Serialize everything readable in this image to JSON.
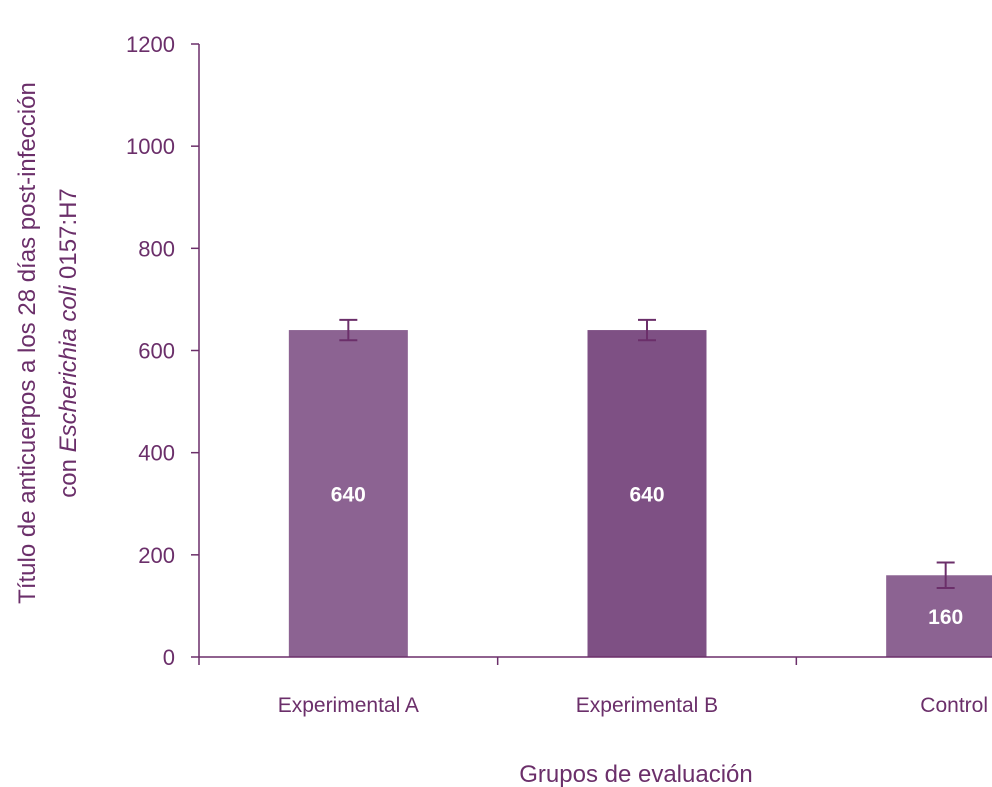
{
  "chart_data": {
    "type": "bar",
    "categories": [
      "Experimental A",
      "Experimental B",
      "Control"
    ],
    "values": [
      640,
      640,
      160
    ],
    "error": [
      20,
      20,
      25
    ],
    "data_labels": [
      "640",
      "640",
      "160"
    ],
    "bar_colors": [
      "#8c6392",
      "#7e5084",
      "#8c6392"
    ],
    "axis_color": "#6b2f6a",
    "error_bar_color": "#6b2f6a",
    "ylim": [
      0,
      1200
    ],
    "yticks": [
      "0",
      "200",
      "400",
      "600",
      "800",
      "1000",
      "1200"
    ],
    "grid": false,
    "xlabel": "Grupos de evaluación",
    "ylabel_line1": "Título de anticuerpos a los 28 días post-infección",
    "ylabel_line2_prefix": "con ",
    "ylabel_line2_italic": "Escherichia coli",
    "ylabel_line2_suffix": " 0157:H7"
  }
}
